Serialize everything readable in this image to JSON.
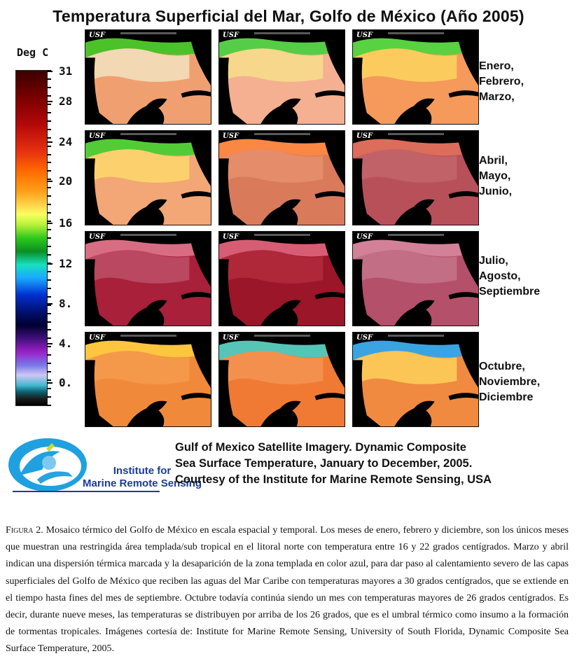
{
  "title": "Temperatura Superficial del Mar, Golfo de México  (Año 2005)",
  "scale": {
    "unit": "Deg C",
    "labels": [
      "31",
      "28",
      "24",
      "20",
      "16",
      "12",
      "8.",
      "4.",
      "0."
    ],
    "colors": {
      "hot": "#7a0000",
      "warm": "#ff8c1a",
      "mild": "#f8ff60",
      "cool": "#2ec81c",
      "cold": "#1aa8ff",
      "land": "#000000"
    }
  },
  "maps": {
    "watermark": "USF",
    "rows": [
      {
        "months": "Enero,\nFebrero,\nMarzo,",
        "lines": [
          "Enero,",
          "Febrero,",
          "Marzo,"
        ]
      },
      {
        "months": "Abril,\nMayo,\nJunio,",
        "lines": [
          "Abril,",
          "Mayo,",
          "Junio,"
        ]
      },
      {
        "months": "Julio,\nAgosto,\nSeptiembre",
        "lines": [
          "Julio,",
          "Agosto,",
          "Septiembre"
        ]
      },
      {
        "months": "Octubre,\nNoviembre,\nDiciembre",
        "lines": [
          "Octubre,",
          "Noviembre,",
          "Diciembre"
        ]
      }
    ]
  },
  "logo": {
    "line1": "Institute for",
    "line2": "Marine Remote Sensing"
  },
  "credit": {
    "line1": "Gulf of Mexico Satellite Imagery. Dynamic  Composite",
    "line2": "Sea Surface Temperature, January to December, 2005.",
    "line3": "Courtesy of the Institute for Marine Remote Sensing, USA"
  },
  "caption": {
    "figure_label": "Figura 2.",
    "text": " Mosaico térmico del Golfo de México en escala espacial y temporal. Los meses de enero, febrero y diciembre, son los únicos meses que muestran una restringida área templada/sub tropical en el litoral norte con temperatura entre 16 y 22 grados centígrados. Marzo y abril indican una dispersión térmica marcada y la desaparición de la zona templada en color azul, para dar paso al calentamiento severo de las capas superficiales del Golfo de México que reciben las aguas del Mar Caribe con temperaturas mayores a 30 grados centígrados, que se extiende en el tiempo hasta fines del mes de septiembre. Octubre todavía continúa siendo un mes con temperaturas mayores de 26 grados centígrados. Es decir, durante nueve meses, las temperaturas se distribuyen por arriba de los 26 grados, que es el umbral térmico como insumo a la formación de tormentas tropicales. Imágenes cortesía de: Institute for Marine Remote Sensing, University of South Florida, Dynamic Composite Sea Surface Temperature, 2005."
  }
}
